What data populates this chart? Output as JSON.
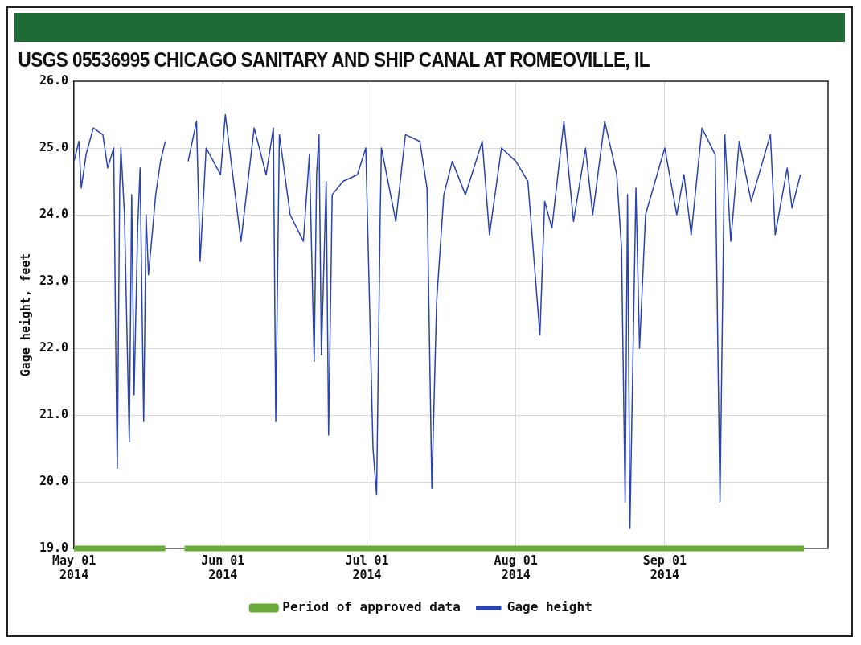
{
  "chart_data": {
    "type": "line",
    "title": "USGS 05536995 CHICAGO SANITARY AND SHIP CANAL AT ROMEOVILLE, IL",
    "ylabel": "Gage height, feet",
    "xlim": [
      "2014-05-01",
      "2014-10-05"
    ],
    "xticks": [
      {
        "value": "2014-05-01",
        "label": "May 01\n2014"
      },
      {
        "value": "2014-06-01",
        "label": "Jun 01\n2014"
      },
      {
        "value": "2014-07-01",
        "label": "Jul 01\n2014"
      },
      {
        "value": "2014-08-01",
        "label": "Aug 01\n2014"
      },
      {
        "value": "2014-09-01",
        "label": "Sep 01\n2014"
      }
    ],
    "ylim": [
      19,
      26
    ],
    "yticks": [
      {
        "value": 19,
        "label": "19.0"
      },
      {
        "value": 20,
        "label": "20.0"
      },
      {
        "value": 21,
        "label": "21.0"
      },
      {
        "value": 22,
        "label": "22.0"
      },
      {
        "value": 23,
        "label": "23.0"
      },
      {
        "value": 24,
        "label": "24.0"
      },
      {
        "value": 25,
        "label": "25.0"
      },
      {
        "value": 26,
        "label": "26.0"
      }
    ],
    "grid": true,
    "legend": "bottom",
    "series": [
      {
        "name": "Gage height",
        "color": "#2a44b0",
        "x": [
          "2014-05-01",
          "2014-05-02",
          "2014-05-02T12:00",
          "2014-05-03T12:00",
          "2014-05-05",
          "2014-05-07",
          "2014-05-08",
          "2014-05-09T06:00",
          "2014-05-09T18:00",
          "2014-05-10",
          "2014-05-10T12:00",
          "2014-05-10T18:00",
          "2014-05-11T12:00",
          "2014-05-12T12:00",
          "2014-05-13",
          "2014-05-13T12:00",
          "2014-05-14T06:00",
          "2014-05-14T18:00",
          "2014-05-15T12:00",
          "2014-05-16",
          "2014-05-16T12:00",
          "2014-05-18",
          "2014-05-19",
          "2014-05-20",
          "2014-05-22",
          "2014-05-24T18:00",
          "2014-05-26T12:00",
          "2014-05-27T06:00",
          "2014-05-28T12:00",
          "2014-05-31T12:00",
          "2014-06-01T12:00",
          "2014-06-04T18:00",
          "2014-06-07T12:00",
          "2014-06-10",
          "2014-06-11T12:00",
          "2014-06-12",
          "2014-06-12T18:00",
          "2014-06-15",
          "2014-06-17T18:00",
          "2014-06-19",
          "2014-06-20",
          "2014-06-20T12:00",
          "2014-06-21",
          "2014-06-21T12:00",
          "2014-06-22T12:00",
          "2014-06-23",
          "2014-06-23T18:00",
          "2014-06-26",
          "2014-06-29",
          "2014-06-30T18:00",
          "2014-07-02T06:00",
          "2014-07-03",
          "2014-07-03T18:00",
          "2014-07-04",
          "2014-07-07",
          "2014-07-09",
          "2014-07-12",
          "2014-07-13T12:00",
          "2014-07-14T12:00",
          "2014-07-15T12:00",
          "2014-07-17",
          "2014-07-18T18:00",
          "2014-07-21T12:00",
          "2014-07-25",
          "2014-07-26T12:00",
          "2014-07-29",
          "2014-08-01",
          "2014-08-03T12:00",
          "2014-08-06",
          "2014-08-07",
          "2014-08-08T12:00",
          "2014-08-11",
          "2014-08-13",
          "2014-08-15T12:00",
          "2014-08-17",
          "2014-08-19T12:00",
          "2014-08-22",
          "2014-08-23",
          "2014-08-23T18:00",
          "2014-08-24T06:00",
          "2014-08-24T18:00",
          "2014-08-26",
          "2014-08-26T18:00",
          "2014-08-28",
          "2014-09-01",
          "2014-09-03T12:00",
          "2014-09-05",
          "2014-09-06T12:00",
          "2014-09-08T18:00",
          "2014-09-11T12:00",
          "2014-09-12T12:00",
          "2014-09-13T12:00",
          "2014-09-14T18:00",
          "2014-09-16T12:00",
          "2014-09-19",
          "2014-09-23",
          "2014-09-24",
          "2014-09-26T12:00",
          "2014-09-27T12:00",
          "2014-09-29T06:00"
        ],
        "values": [
          24.8,
          25.1,
          24.4,
          24.9,
          25.3,
          25.2,
          24.7,
          25.0,
          21.6,
          20.2,
          24.4,
          25.0,
          24.0,
          20.6,
          24.3,
          21.3,
          23.8,
          24.7,
          20.9,
          24.0,
          23.1,
          24.3,
          24.8,
          25.1,
          null,
          24.8,
          25.4,
          23.3,
          25.0,
          24.6,
          25.5,
          23.6,
          25.3,
          24.6,
          25.3,
          20.9,
          25.2,
          24.0,
          23.6,
          24.9,
          21.8,
          24.6,
          25.2,
          21.9,
          24.5,
          20.7,
          24.3,
          24.5,
          24.6,
          25.0,
          20.5,
          19.8,
          24.0,
          25.0,
          23.9,
          25.2,
          25.1,
          24.4,
          19.9,
          22.7,
          24.3,
          24.8,
          24.3,
          25.1,
          23.7,
          25.0,
          24.8,
          24.5,
          22.2,
          24.2,
          23.8,
          25.4,
          23.9,
          25.0,
          24.0,
          25.4,
          24.6,
          23.5,
          19.7,
          24.3,
          19.3,
          24.4,
          22.0,
          24.0,
          25.0,
          24.0,
          24.6,
          23.7,
          25.3,
          24.9,
          19.7,
          25.2,
          23.6,
          25.1,
          24.2,
          25.2,
          23.7,
          24.7,
          24.1,
          24.6
        ]
      },
      {
        "name": "Period of approved data",
        "color": "#6aaa3a",
        "x": [
          "2014-05-01",
          "2014-05-20",
          "2014-05-22",
          "2014-05-24",
          "2014-09-30"
        ],
        "values": [
          19,
          19,
          null,
          19,
          19
        ]
      }
    ]
  }
}
